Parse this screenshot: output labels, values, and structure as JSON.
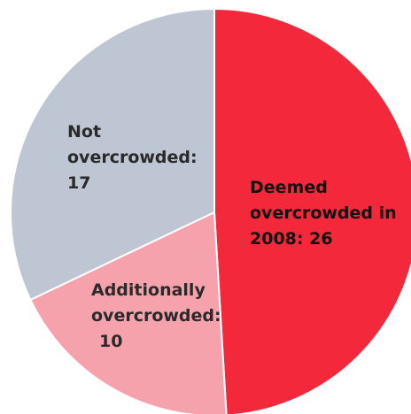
{
  "chart_data": {
    "type": "pie",
    "slices": [
      {
        "key": "deemed",
        "lines": [
          "Deemed",
          "overcrowded in",
          "2008: 26"
        ],
        "value": 26,
        "color": "#f3283a"
      },
      {
        "key": "additionally",
        "lines": [
          "Additionally",
          "overcrowded:",
          "10"
        ],
        "value": 10,
        "color": "#f6a2ad"
      },
      {
        "key": "not",
        "lines": [
          "Not",
          "overcrowded:",
          "17"
        ],
        "value": 17,
        "color": "#bfc6d3"
      }
    ]
  }
}
